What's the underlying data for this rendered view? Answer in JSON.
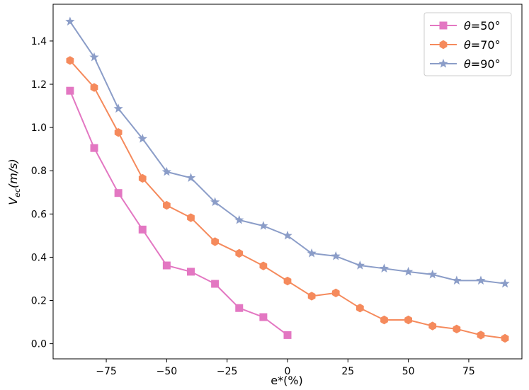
{
  "chart_data": {
    "type": "line",
    "title": "",
    "xlabel": "e*(%)",
    "ylabel": "Vec(m/s)",
    "ylabel_main": "V",
    "ylabel_sub": "ec",
    "ylabel_rest": "(m/s)",
    "xlim": [
      -97,
      97
    ],
    "ylim": [
      -0.07,
      1.57
    ],
    "xticks": [
      -75,
      -50,
      -25,
      0,
      25,
      50,
      75
    ],
    "xtick_labels": [
      "−75",
      "−50",
      "−25",
      "0",
      "25",
      "50",
      "75"
    ],
    "yticks": [
      0.0,
      0.2,
      0.4,
      0.6,
      0.8,
      1.0,
      1.2,
      1.4
    ],
    "ytick_labels": [
      "0.0",
      "0.2",
      "0.4",
      "0.6",
      "0.8",
      "1.0",
      "1.2",
      "1.4"
    ],
    "grid": false,
    "legend_position": "top-right",
    "series": [
      {
        "name": "θ=50°",
        "theta": "θ",
        "label_rest": "=50°",
        "color": "#e377c2",
        "marker": "square",
        "x": [
          -90,
          -80,
          -70,
          -60,
          -50,
          -40,
          -30,
          -20,
          -10,
          0
        ],
        "y": [
          1.17,
          0.905,
          0.697,
          0.528,
          0.362,
          0.333,
          0.277,
          0.165,
          0.123,
          0.04
        ]
      },
      {
        "name": "θ=70°",
        "theta": "θ",
        "label_rest": "=70°",
        "color": "#f58a5c",
        "marker": "hexagon",
        "x": [
          -90,
          -80,
          -70,
          -60,
          -50,
          -40,
          -30,
          -20,
          -10,
          0,
          10,
          20,
          30,
          40,
          50,
          60,
          70,
          80,
          90
        ],
        "y": [
          1.31,
          1.185,
          0.977,
          0.765,
          0.64,
          0.583,
          0.472,
          0.418,
          0.36,
          0.29,
          0.22,
          0.235,
          0.165,
          0.11,
          0.11,
          0.082,
          0.068,
          0.04,
          0.025
        ]
      },
      {
        "name": "θ=90°",
        "theta": "θ",
        "label_rest": "=90°",
        "color": "#8b9dc8",
        "marker": "star",
        "x": [
          -90,
          -80,
          -70,
          -60,
          -50,
          -40,
          -30,
          -20,
          -10,
          0,
          10,
          20,
          30,
          40,
          50,
          60,
          70,
          80,
          90
        ],
        "y": [
          1.49,
          1.325,
          1.087,
          0.948,
          0.795,
          0.767,
          0.655,
          0.572,
          0.545,
          0.5,
          0.418,
          0.405,
          0.362,
          0.348,
          0.333,
          0.32,
          0.292,
          0.292,
          0.278
        ]
      }
    ]
  }
}
